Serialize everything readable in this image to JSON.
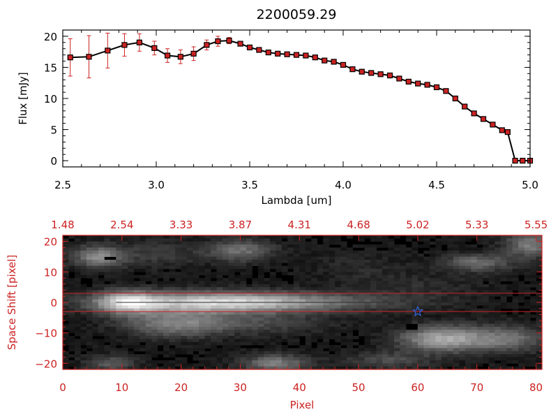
{
  "chart_data": [
    {
      "type": "line",
      "title": "2200059.29",
      "xlabel": "Lambda [um]",
      "ylabel": "Flux [mJy]",
      "xlim": [
        2.5,
        5.0
      ],
      "ylim": [
        -1,
        21
      ],
      "xticks": [
        2.5,
        3.0,
        3.5,
        4.0,
        4.5,
        5.0
      ],
      "xtick_labels": [
        "2.5",
        "3.0",
        "3.5",
        "4.0",
        "4.5",
        "5.0"
      ],
      "yticks": [
        0,
        5,
        10,
        15,
        20
      ],
      "ytick_labels": [
        "0",
        "5",
        "10",
        "15",
        "20"
      ],
      "colors": {
        "line": "#000000",
        "marker": "#cc2222",
        "errorbar": "#cc2222"
      },
      "series": [
        {
          "x": [
            2.54,
            2.64,
            2.74,
            2.83,
            2.91,
            2.99,
            3.06,
            3.13,
            3.2,
            3.27,
            3.33,
            3.39,
            3.45,
            3.5,
            3.55,
            3.6,
            3.65,
            3.7,
            3.75,
            3.8,
            3.85,
            3.9,
            3.95,
            4.0,
            4.05,
            4.1,
            4.15,
            4.2,
            4.25,
            4.3,
            4.35,
            4.4,
            4.45,
            4.5,
            4.55,
            4.6,
            4.65,
            4.7,
            4.75,
            4.8,
            4.85,
            4.88,
            4.92,
            4.96,
            5.0
          ],
          "y": [
            16.6,
            16.7,
            17.7,
            18.6,
            19.0,
            18.1,
            16.9,
            16.7,
            17.2,
            18.6,
            19.2,
            19.3,
            18.8,
            18.2,
            17.8,
            17.4,
            17.2,
            17.1,
            17.0,
            16.9,
            16.6,
            16.1,
            15.9,
            15.4,
            14.7,
            14.3,
            14.1,
            13.9,
            13.7,
            13.2,
            12.7,
            12.4,
            12.2,
            11.8,
            11.2,
            10.0,
            8.7,
            7.6,
            6.7,
            5.8,
            4.9,
            4.6,
            0.0,
            0.0,
            0.0
          ],
          "yerr": [
            3.0,
            3.4,
            2.8,
            1.8,
            1.4,
            1.1,
            1.1,
            1.1,
            1.1,
            0.8,
            0.8,
            0.5,
            0.3,
            0.2,
            0.2,
            0.2,
            0.2,
            0.2,
            0.2,
            0.2,
            0.2,
            0.2,
            0.2,
            0.2,
            0.2,
            0.2,
            0.2,
            0.2,
            0.2,
            0.2,
            0.2,
            0.2,
            0.2,
            0.2,
            0.2,
            0.2,
            0.2,
            0.2,
            0.2,
            0.2,
            0.2,
            0.2,
            0.0,
            0.0,
            0.0
          ]
        }
      ]
    },
    {
      "type": "heatmap",
      "xlabel": "Pixel",
      "ylabel": "Space Shift [pixel]",
      "xlim": [
        0,
        81
      ],
      "ylim": [
        -22,
        22
      ],
      "xticks": [
        0,
        10,
        20,
        30,
        40,
        50,
        60,
        70,
        80
      ],
      "xtick_labels": [
        "0",
        "10",
        "20",
        "30",
        "40",
        "50",
        "60",
        "70",
        "80"
      ],
      "yticks": [
        -20,
        -10,
        0,
        10,
        20
      ],
      "ytick_labels": [
        "−20",
        "−10",
        "0",
        "10",
        "20"
      ],
      "top_xticks": [
        0,
        10,
        20,
        30,
        40,
        50,
        60,
        70,
        80
      ],
      "top_xtick_labels": [
        "1.48",
        "2.54",
        "3.33",
        "3.87",
        "4.31",
        "4.68",
        "5.02",
        "5.33",
        "5.55"
      ],
      "extraction_window": [
        -3,
        3
      ],
      "source_marker": {
        "x": 60,
        "y": -3
      },
      "colors": {
        "axes": "#cc2222",
        "window": "#cc2222",
        "star": "#3366dd"
      },
      "blobs": [
        {
          "x": 30,
          "y": 0,
          "sx": 16,
          "sy": 2.3,
          "v": 0.55
        },
        {
          "x": 11,
          "y": 0,
          "sx": 3.5,
          "sy": 2.6,
          "v": 0.55
        },
        {
          "x": 25,
          "y": 0,
          "sx": 10,
          "sy": 2.6,
          "v": 0.25
        },
        {
          "x": 6,
          "y": 15,
          "sx": 3,
          "sy": 2.5,
          "v": 0.45
        },
        {
          "x": 30,
          "y": 17,
          "sx": 4,
          "sy": 2.5,
          "v": 0.35
        },
        {
          "x": 16,
          "y": 16,
          "sx": 5,
          "sy": 3,
          "v": 0.15
        },
        {
          "x": 19,
          "y": -7,
          "sx": 6,
          "sy": 3,
          "v": 0.4
        },
        {
          "x": 33,
          "y": -7,
          "sx": 8,
          "sy": 2.5,
          "v": 0.18
        },
        {
          "x": 64,
          "y": -12,
          "sx": 5,
          "sy": 3,
          "v": 0.55
        },
        {
          "x": 75,
          "y": -12,
          "sx": 5,
          "sy": 3,
          "v": 0.35
        },
        {
          "x": 70,
          "y": 13,
          "sx": 4,
          "sy": 2,
          "v": 0.35
        },
        {
          "x": 79,
          "y": 19,
          "sx": 3,
          "sy": 3,
          "v": 0.4
        },
        {
          "x": 36,
          "y": -20,
          "sx": 4,
          "sy": 2,
          "v": 0.4
        },
        {
          "x": 8,
          "y": -20,
          "sx": 3,
          "sy": 2,
          "v": 0.25
        },
        {
          "x": 55,
          "y": -19,
          "sx": 5,
          "sy": 2,
          "v": 0.2
        },
        {
          "x": 50,
          "y": 12,
          "sx": 6,
          "sy": 3,
          "v": 0.08
        },
        {
          "x": 60,
          "y": 5,
          "sx": 8,
          "sy": 3,
          "v": 0.08
        }
      ],
      "dark_spots": [
        {
          "x": 8,
          "y": 14.5
        },
        {
          "x": 59,
          "y": -8
        }
      ]
    }
  ]
}
